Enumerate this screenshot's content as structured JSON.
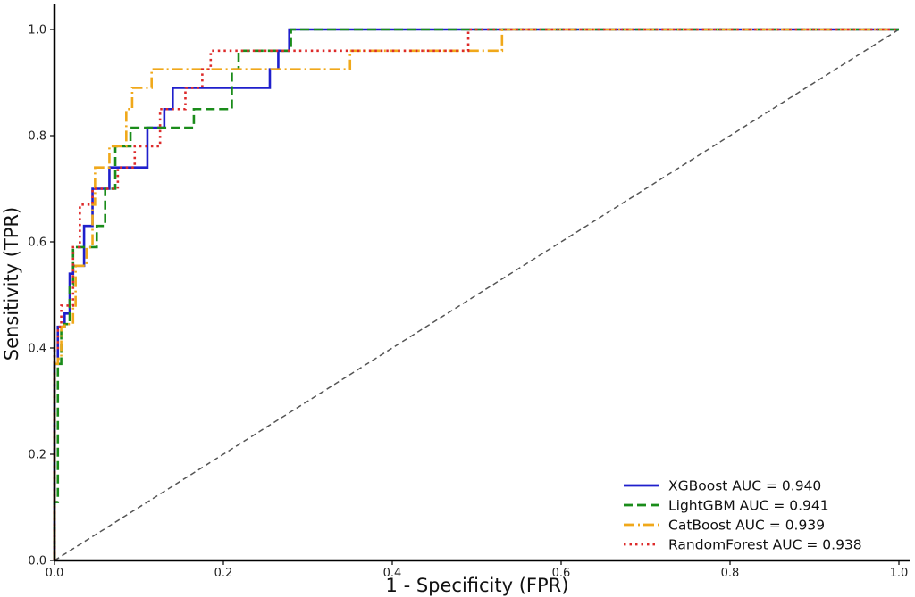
{
  "chart_data": {
    "type": "line",
    "title": "",
    "xlabel": "1 - Specificity (FPR)",
    "ylabel": "Sensitivity (TPR)",
    "xlim": [
      0.0,
      1.0
    ],
    "ylim": [
      0.0,
      1.0
    ],
    "xticks": [
      "0.0",
      "0.2",
      "0.4",
      "0.6",
      "0.8",
      "1.0"
    ],
    "yticks": [
      "0.0",
      "0.2",
      "0.4",
      "0.6",
      "0.8",
      "1.0"
    ],
    "grid": false,
    "legend_position": "lower-right",
    "reference_line": {
      "x": [
        0,
        1
      ],
      "y": [
        0,
        1
      ],
      "color": "#555555",
      "style": "dashed"
    },
    "series": [
      {
        "name": "XGBoost AUC = 0.940",
        "color": "#1f1fcc",
        "style": "solid",
        "x": [
          0,
          0,
          0.004,
          0.004,
          0.012,
          0.012,
          0.018,
          0.018,
          0.022,
          0.022,
          0.035,
          0.035,
          0.045,
          0.045,
          0.048,
          0.048,
          0.065,
          0.065,
          0.075,
          0.075,
          0.11,
          0.11,
          0.13,
          0.13,
          0.14,
          0.14,
          0.255,
          0.255,
          0.265,
          0.265,
          0.278,
          0.278,
          1.0
        ],
        "y": [
          0,
          0.37,
          0.37,
          0.44,
          0.44,
          0.465,
          0.465,
          0.54,
          0.54,
          0.555,
          0.555,
          0.63,
          0.63,
          0.7,
          0.7,
          0.7,
          0.7,
          0.74,
          0.74,
          0.74,
          0.74,
          0.815,
          0.815,
          0.85,
          0.85,
          0.89,
          0.89,
          0.925,
          0.925,
          0.96,
          0.96,
          1.0,
          1.0
        ]
      },
      {
        "name": "LightGBM AUC = 0.941",
        "color": "#1a8c1a",
        "style": "dashed",
        "x": [
          0,
          0,
          0.004,
          0.004,
          0.008,
          0.008,
          0.012,
          0.012,
          0.018,
          0.018,
          0.022,
          0.022,
          0.035,
          0.035,
          0.05,
          0.05,
          0.06,
          0.06,
          0.072,
          0.072,
          0.09,
          0.09,
          0.105,
          0.105,
          0.165,
          0.165,
          0.21,
          0.21,
          0.218,
          0.218,
          0.28,
          0.28,
          1.0
        ],
        "y": [
          0,
          0.11,
          0.11,
          0.37,
          0.37,
          0.44,
          0.44,
          0.445,
          0.445,
          0.52,
          0.52,
          0.59,
          0.59,
          0.59,
          0.59,
          0.63,
          0.63,
          0.7,
          0.7,
          0.78,
          0.78,
          0.815,
          0.815,
          0.815,
          0.815,
          0.85,
          0.85,
          0.925,
          0.925,
          0.96,
          0.96,
          1.0,
          1.0
        ]
      },
      {
        "name": "CatBoost AUC = 0.939",
        "color": "#f0a81a",
        "style": "dashdot",
        "x": [
          0,
          0,
          0.004,
          0.004,
          0.008,
          0.008,
          0.012,
          0.012,
          0.022,
          0.022,
          0.025,
          0.025,
          0.038,
          0.038,
          0.045,
          0.045,
          0.048,
          0.048,
          0.065,
          0.065,
          0.085,
          0.085,
          0.092,
          0.092,
          0.115,
          0.115,
          0.125,
          0.125,
          0.35,
          0.35,
          0.53,
          0.53,
          1.0
        ],
        "y": [
          0,
          0.37,
          0.37,
          0.38,
          0.38,
          0.44,
          0.44,
          0.445,
          0.445,
          0.48,
          0.48,
          0.555,
          0.555,
          0.59,
          0.59,
          0.67,
          0.67,
          0.74,
          0.74,
          0.78,
          0.78,
          0.85,
          0.85,
          0.89,
          0.89,
          0.925,
          0.925,
          0.925,
          0.925,
          0.96,
          0.96,
          1.0,
          1.0
        ]
      },
      {
        "name": "RandomForest AUC = 0.938",
        "color": "#dd2a2a",
        "style": "dotted",
        "x": [
          0,
          0,
          0.004,
          0.004,
          0.008,
          0.008,
          0.012,
          0.012,
          0.022,
          0.022,
          0.03,
          0.03,
          0.045,
          0.045,
          0.055,
          0.055,
          0.075,
          0.075,
          0.095,
          0.095,
          0.125,
          0.125,
          0.155,
          0.155,
          0.175,
          0.175,
          0.185,
          0.185,
          0.49,
          0.49,
          1.0
        ],
        "y": [
          0,
          0.4,
          0.4,
          0.44,
          0.44,
          0.48,
          0.48,
          0.48,
          0.48,
          0.59,
          0.59,
          0.67,
          0.67,
          0.7,
          0.7,
          0.7,
          0.7,
          0.74,
          0.74,
          0.78,
          0.78,
          0.85,
          0.85,
          0.89,
          0.89,
          0.925,
          0.925,
          0.96,
          0.96,
          1.0,
          1.0
        ]
      }
    ]
  }
}
